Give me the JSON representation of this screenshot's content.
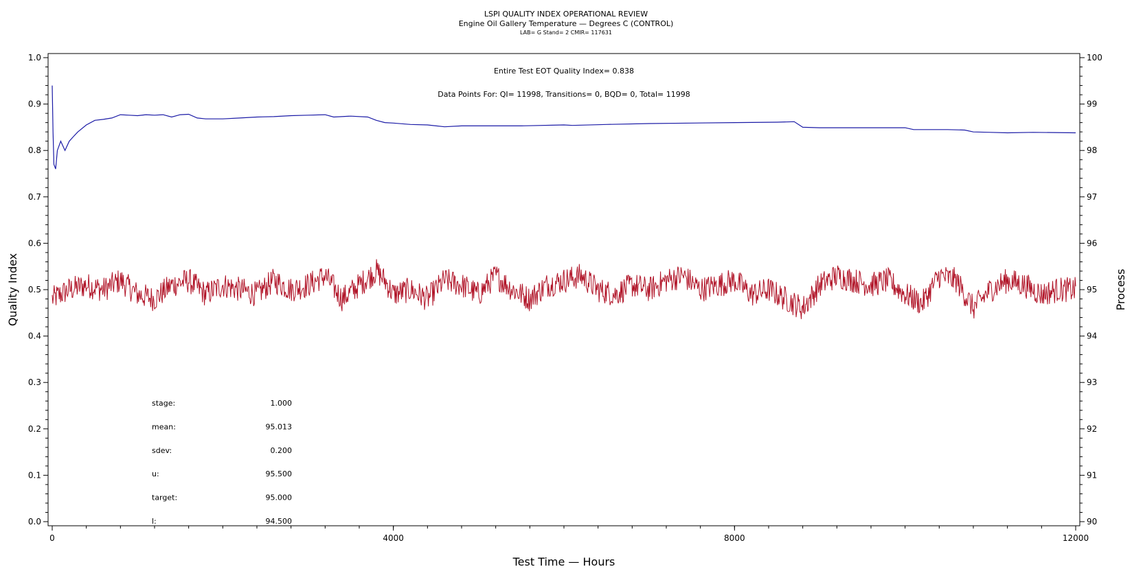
{
  "chart_data": {
    "type": "line",
    "title": "LSPI QUALITY INDEX OPERATIONAL REVIEW",
    "subtitle": "Engine Oil Gallery Temperature — Degrees C (CONTROL)",
    "subtitle2": "LAB= G Stand= 2 CMIR= 117631",
    "xlabel": "Test Time — Hours",
    "ylabel_left": "Quality Index",
    "ylabel_right": "Process",
    "xlim": [
      0,
      12000
    ],
    "ylim_left": [
      0,
      1
    ],
    "ylim_right": [
      90,
      100
    ],
    "x_ticks": [
      "0",
      "4000",
      "8000",
      "12000"
    ],
    "y_ticks_left": [
      "0.0",
      "0.1",
      "0.2",
      "0.3",
      "0.4",
      "0.5",
      "0.6",
      "0.7",
      "0.8",
      "0.9",
      "1.0"
    ],
    "y_ticks_right": [
      "90",
      "91",
      "92",
      "93",
      "94",
      "95",
      "96",
      "97",
      "98",
      "99",
      "100"
    ],
    "annotation_qi": "Entire Test EOT Quality Index=   0.838",
    "annotation_points": "Data Points For: QI= 11998, Transitions=     0, BQD=     0, Total= 11998",
    "stats": [
      {
        "label": "stage:",
        "value": "1.000"
      },
      {
        "label": "mean:",
        "value": "95.013"
      },
      {
        "label": "sdev:",
        "value": "0.200"
      },
      {
        "label": "u:",
        "value": "95.500"
      },
      {
        "label": "target:",
        "value": "95.000"
      },
      {
        "label": "l:",
        "value": "94.500"
      }
    ],
    "series": [
      {
        "axis": "left",
        "color": "#1a1aa6",
        "x": [
          0,
          10,
          20,
          40,
          60,
          100,
          150,
          200,
          250,
          300,
          400,
          500,
          600,
          700,
          800,
          900,
          1000,
          1100,
          1200,
          1300,
          1400,
          1500,
          1600,
          1700,
          1800,
          2000,
          2200,
          2400,
          2600,
          2800,
          3000,
          3200,
          3300,
          3500,
          3700,
          3800,
          3900,
          4000,
          4200,
          4400,
          4600,
          4800,
          5000,
          5500,
          6000,
          6100,
          6500,
          7000,
          7500,
          8000,
          8500,
          8700,
          8800,
          9000,
          9500,
          10000,
          10100,
          10500,
          10700,
          10800,
          11000,
          11200,
          11500,
          12000
        ],
        "values": [
          0.94,
          0.84,
          0.77,
          0.76,
          0.8,
          0.82,
          0.8,
          0.82,
          0.83,
          0.84,
          0.855,
          0.865,
          0.867,
          0.87,
          0.877,
          0.876,
          0.875,
          0.877,
          0.876,
          0.877,
          0.872,
          0.877,
          0.878,
          0.87,
          0.868,
          0.868,
          0.87,
          0.872,
          0.873,
          0.875,
          0.876,
          0.877,
          0.872,
          0.874,
          0.872,
          0.865,
          0.86,
          0.859,
          0.856,
          0.855,
          0.851,
          0.853,
          0.853,
          0.853,
          0.855,
          0.854,
          0.856,
          0.858,
          0.859,
          0.86,
          0.861,
          0.862,
          0.85,
          0.849,
          0.849,
          0.849,
          0.845,
          0.845,
          0.844,
          0.84,
          0.839,
          0.838,
          0.839,
          0.838
        ]
      },
      {
        "axis": "right",
        "color": "#b01226",
        "x": [
          0,
          200,
          400,
          600,
          800,
          1000,
          1200,
          1400,
          1600,
          1800,
          2000,
          2200,
          2400,
          2600,
          2800,
          3000,
          3200,
          3400,
          3600,
          3800,
          3900,
          4000,
          4200,
          4400,
          4600,
          4800,
          5000,
          5200,
          5400,
          5600,
          5800,
          6000,
          6200,
          6400,
          6600,
          6800,
          7000,
          7200,
          7400,
          7600,
          7800,
          8000,
          8200,
          8400,
          8600,
          8800,
          9000,
          9200,
          9400,
          9600,
          9800,
          10000,
          10200,
          10400,
          10600,
          10800,
          11000,
          11200,
          11400,
          11600,
          11800,
          12000
        ],
        "values": [
          94.8,
          95.0,
          95.1,
          95.0,
          95.2,
          94.9,
          94.8,
          95.1,
          95.2,
          94.9,
          95.1,
          95.0,
          94.9,
          95.2,
          95.0,
          95.1,
          95.3,
          94.8,
          95.1,
          95.4,
          95.2,
          94.9,
          95.0,
          94.8,
          95.2,
          95.1,
          94.9,
          95.3,
          95.0,
          94.8,
          95.1,
          95.2,
          95.3,
          95.0,
          94.9,
          95.1,
          95.0,
          95.2,
          95.3,
          95.0,
          95.1,
          95.2,
          94.9,
          95.0,
          94.8,
          94.6,
          95.1,
          95.3,
          95.2,
          95.1,
          95.2,
          94.9,
          94.7,
          95.3,
          95.2,
          94.6,
          95.0,
          95.2,
          95.1,
          94.9,
          95.0,
          95.0
        ]
      }
    ]
  }
}
